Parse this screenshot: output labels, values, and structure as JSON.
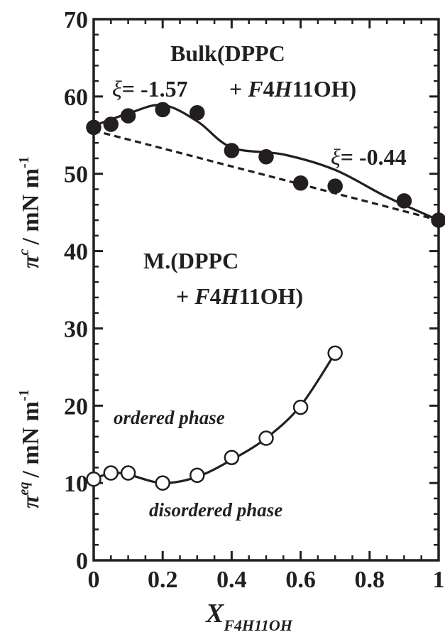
{
  "chart_data": {
    "type": "scatter",
    "title": "",
    "xlabel": "X",
    "xlabel_sub": "F4H11OH",
    "ylabel_upper": {
      "symbol": "π",
      "sup": "c",
      "unit": "/ mN m",
      "unit_sup": "-1"
    },
    "ylabel_lower": {
      "symbol": "π",
      "sup": "eq",
      "unit": "/ mN m",
      "unit_sup": "-1"
    },
    "xlim": [
      0,
      1
    ],
    "ylim": [
      0,
      70
    ],
    "x_ticks": [
      "0",
      "0.2",
      "0.4",
      "0.6",
      "0.8",
      "1"
    ],
    "x_tick_values": [
      0,
      0.2,
      0.4,
      0.6,
      0.8,
      1
    ],
    "y_ticks": [
      "0",
      "10",
      "20",
      "30",
      "40",
      "50",
      "60",
      "70"
    ],
    "y_tick_values": [
      0,
      10,
      20,
      30,
      40,
      50,
      60,
      70
    ],
    "grid": false,
    "series": [
      {
        "name": "Bulk(DPPC + F4H11OH)",
        "marker": "filled-circle",
        "x": [
          0,
          0.05,
          0.1,
          0.2,
          0.3,
          0.4,
          0.5,
          0.6,
          0.7,
          0.9,
          1.0
        ],
        "y": [
          56.0,
          56.4,
          57.5,
          58.3,
          57.9,
          53.0,
          52.2,
          48.8,
          48.4,
          46.5,
          44.0
        ]
      },
      {
        "name": "M.(DPPC + F4H11OH)",
        "marker": "open-circle",
        "x": [
          0,
          0.05,
          0.1,
          0.2,
          0.3,
          0.4,
          0.5,
          0.6,
          0.7
        ],
        "y": [
          10.5,
          11.3,
          11.3,
          10.0,
          11.0,
          13.3,
          15.8,
          19.8,
          26.8
        ]
      }
    ],
    "curves": [
      {
        "style": "solid",
        "x": [
          0,
          0.1,
          0.2,
          0.3,
          0.4,
          0.55,
          0.7,
          0.85,
          1.0
        ],
        "y": [
          56.2,
          57.8,
          58.9,
          56.8,
          53.4,
          52.5,
          50.5,
          47.0,
          44.0
        ]
      },
      {
        "style": "dashed",
        "x": [
          0,
          1.0
        ],
        "y": [
          55.6,
          44.0
        ]
      },
      {
        "style": "solid",
        "x": [
          0,
          0.05,
          0.1,
          0.2,
          0.3,
          0.4,
          0.5,
          0.6,
          0.7
        ],
        "y": [
          10.5,
          11.3,
          11.1,
          10.0,
          10.8,
          13.0,
          15.8,
          20.0,
          26.8
        ]
      }
    ],
    "annotations": {
      "bulk_line1": "Bulk(DPPC",
      "bulk_line2_plus": "+ ",
      "bulk_line2_italic_a": "F",
      "bulk_line2_mid": "4",
      "bulk_line2_italic_b": "H",
      "bulk_line2_end": "11OH)",
      "xi1_symbol": "ξ",
      "xi1_value": "= -1.57",
      "xi2_symbol": "ξ",
      "xi2_value": "= -0.44",
      "m_line1": "M.(DPPC",
      "m_line2_plus": "+ ",
      "m_line2_italic_a": "F",
      "m_line2_mid": "4",
      "m_line2_italic_b": "H",
      "m_line2_end": "11OH)",
      "ordered": "ordered phase",
      "disordered": "disordered phase"
    },
    "colors": {
      "ink": "#231f20",
      "background": "#ffffff"
    }
  }
}
